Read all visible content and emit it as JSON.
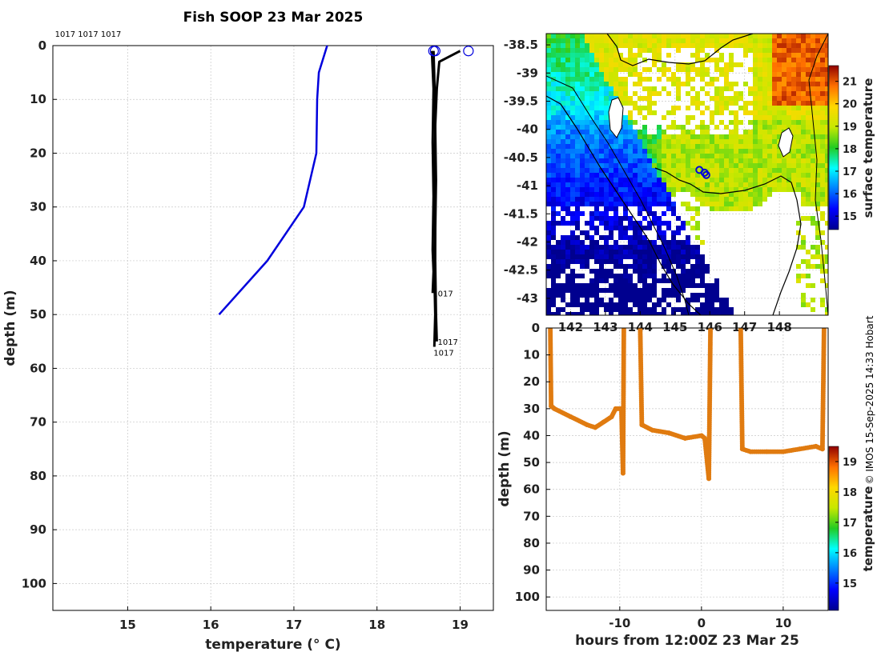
{
  "title": "Fish SOOP 23 Mar 2025",
  "credit": "© IMOS 15-Sep-2025 14:33 Hobart",
  "chart_data": [
    {
      "type": "line",
      "name": "temperature-depth-profile",
      "xlabel": "temperature (° C)",
      "ylabel": "depth (m)",
      "xlim": [
        14.1,
        19.4
      ],
      "ylim": [
        105,
        0
      ],
      "xticks": [
        15,
        16,
        17,
        18,
        19
      ],
      "yticks": [
        0,
        10,
        20,
        30,
        40,
        50,
        60,
        70,
        80,
        90,
        100
      ],
      "top_annotations": "1017 1017 1017",
      "series": [
        {
          "name": "climatology",
          "color": "#0000dd",
          "x": [
            17.4,
            17.3,
            17.28,
            17.27,
            17.12,
            16.68,
            16.1
          ],
          "y": [
            0,
            5,
            10,
            20,
            30,
            40,
            50
          ]
        },
        {
          "name": "profile-1",
          "color": "#000000",
          "x": [
            19.0,
            18.75,
            18.72,
            18.7,
            18.71,
            18.7,
            18.7,
            18.71,
            18.72
          ],
          "y": [
            1,
            3,
            8,
            15,
            25,
            35,
            40,
            50,
            55
          ]
        },
        {
          "name": "profile-2",
          "color": "#000000",
          "x": [
            18.68,
            18.69,
            18.7,
            18.69,
            18.7,
            18.69,
            18.7,
            18.69
          ],
          "y": [
            1,
            6,
            15,
            25,
            35,
            42,
            50,
            56
          ]
        },
        {
          "name": "profile-3",
          "color": "#000000",
          "x": [
            18.66,
            18.68,
            18.67,
            18.68,
            18.67,
            18.68,
            18.67
          ],
          "y": [
            1,
            8,
            18,
            28,
            38,
            42,
            46
          ]
        }
      ],
      "markers": [
        {
          "x": 18.68,
          "y": 1
        },
        {
          "x": 18.7,
          "y": 1
        },
        {
          "x": 19.1,
          "y": 1
        }
      ],
      "depth_labels": [
        {
          "text": "1017",
          "x": 18.67,
          "y": 46
        },
        {
          "text": "1017",
          "x": 18.73,
          "y": 55
        },
        {
          "text": "1017",
          "x": 18.68,
          "y": 57
        }
      ]
    },
    {
      "type": "heatmap",
      "name": "surface-temperature-map",
      "colorbar_label": "surface temperature",
      "colorbar_ticks": [
        15,
        16,
        17,
        18,
        19,
        20,
        21
      ],
      "colorbar_range": [
        14.4,
        21.7
      ],
      "xlim": [
        141.3,
        149.4
      ],
      "ylim": [
        -43.3,
        -38.3
      ],
      "xticks": [
        142,
        143,
        144,
        145,
        146,
        147,
        148
      ],
      "xtick_labels": [
        "142",
        "143",
        "144",
        "145",
        "146",
        "147",
        "148"
      ],
      "yticks": [
        -38.5,
        -39,
        -39.5,
        -40,
        -40.5,
        -41,
        -41.5,
        -42,
        -42.5,
        -43
      ],
      "ytick_labels": [
        "-38.5",
        "-39",
        "-39.5",
        "-40",
        "-40.5",
        "-41",
        "-41.5",
        "-42",
        "-42.5",
        "-43"
      ],
      "track_points": [
        {
          "lon": 145.7,
          "lat": -40.72
        },
        {
          "lon": 145.85,
          "lat": -40.77
        },
        {
          "lon": 145.9,
          "lat": -40.81
        }
      ]
    },
    {
      "type": "scatter",
      "name": "time-depth-section",
      "xlabel": "hours from 12:00Z 23 Mar 25",
      "ylabel": "depth (m)",
      "xlim": [
        -19,
        15.5
      ],
      "ylim": [
        105,
        0
      ],
      "xticks": [
        -10,
        0,
        10
      ],
      "yticks": [
        0,
        10,
        20,
        30,
        40,
        50,
        60,
        70,
        80,
        90,
        100
      ],
      "colorbar_label": "temperature",
      "colorbar_ticks": [
        15,
        16,
        17,
        18,
        19
      ],
      "colorbar_range": [
        14.1,
        19.5
      ],
      "point_color": "#e07b10",
      "segments": [
        {
          "x": [
            -18.5,
            -18.4,
            -18,
            -16,
            -14,
            -13,
            -12,
            -11,
            -10.5,
            -9.8,
            -9.6,
            -9.5
          ],
          "y": [
            0,
            29,
            30,
            33,
            36,
            37,
            35,
            33,
            30,
            30,
            54,
            0
          ]
        },
        {
          "x": [
            -7.5,
            -7.3,
            -6,
            -4,
            -2,
            0,
            0.4,
            0.9,
            1.1
          ],
          "y": [
            0,
            36,
            38,
            39,
            41,
            40,
            41,
            56,
            0
          ]
        },
        {
          "x": [
            4.8,
            5,
            6,
            8,
            10,
            12,
            14,
            14.8,
            15
          ],
          "y": [
            0,
            45,
            46,
            46,
            46,
            45,
            44,
            45,
            0
          ]
        }
      ]
    }
  ]
}
